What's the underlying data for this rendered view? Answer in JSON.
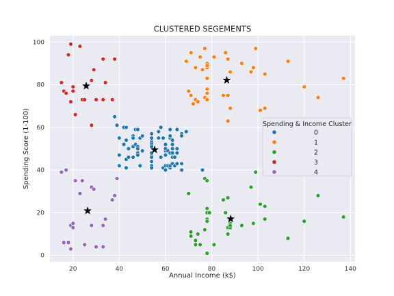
{
  "chart_data": {
    "type": "scatter",
    "title": "CLUSTERED SEGEMENTS",
    "xlabel": "Annual Income (k$)",
    "ylabel": "Spending Score (1-100)",
    "xlim": [
      10,
      142
    ],
    "ylim": [
      -3,
      103
    ],
    "xticks": [
      20,
      40,
      60,
      80,
      100,
      120,
      140
    ],
    "yticks": [
      0,
      20,
      40,
      60,
      80,
      100
    ],
    "grid": true,
    "legend": {
      "title": "Spending & Income Cluster",
      "placement": "right"
    },
    "series": [
      {
        "name": "0",
        "color": "#1f77b4",
        "points": [
          [
            38,
            65
          ],
          [
            39,
            61
          ],
          [
            40,
            55
          ],
          [
            40,
            47
          ],
          [
            40,
            42
          ],
          [
            40,
            42
          ],
          [
            42,
            52
          ],
          [
            42,
            60
          ],
          [
            43,
            54
          ],
          [
            43,
            60
          ],
          [
            43,
            45
          ],
          [
            43,
            41
          ],
          [
            44,
            50
          ],
          [
            44,
            46
          ],
          [
            46,
            51
          ],
          [
            46,
            46
          ],
          [
            46,
            56
          ],
          [
            46,
            55
          ],
          [
            47,
            52
          ],
          [
            47,
            59
          ],
          [
            48,
            51
          ],
          [
            48,
            59
          ],
          [
            48,
            50
          ],
          [
            48,
            48
          ],
          [
            48,
            59
          ],
          [
            48,
            47
          ],
          [
            49,
            55
          ],
          [
            49,
            42
          ],
          [
            50,
            49
          ],
          [
            50,
            56
          ],
          [
            54,
            47
          ],
          [
            54,
            54
          ],
          [
            54,
            53
          ],
          [
            54,
            48
          ],
          [
            54,
            52
          ],
          [
            54,
            42
          ],
          [
            54,
            51
          ],
          [
            54,
            55
          ],
          [
            54,
            41
          ],
          [
            54,
            44
          ],
          [
            54,
            57
          ],
          [
            54,
            46
          ],
          [
            57,
            58
          ],
          [
            57,
            55
          ],
          [
            58,
            60
          ],
          [
            58,
            46
          ],
          [
            59,
            55
          ],
          [
            59,
            41
          ],
          [
            60,
            49
          ],
          [
            60,
            40
          ],
          [
            60,
            42
          ],
          [
            60,
            52
          ],
          [
            60,
            47
          ],
          [
            60,
            50
          ],
          [
            61,
            42
          ],
          [
            61,
            49
          ],
          [
            62,
            41
          ],
          [
            62,
            48
          ],
          [
            62,
            59
          ],
          [
            62,
            55
          ],
          [
            62,
            56
          ],
          [
            62,
            42
          ],
          [
            63,
            50
          ],
          [
            63,
            46
          ],
          [
            63,
            43
          ],
          [
            63,
            48
          ],
          [
            63,
            52
          ],
          [
            63,
            54
          ],
          [
            64,
            42
          ],
          [
            64,
            46
          ],
          [
            65,
            48
          ],
          [
            65,
            50
          ],
          [
            65,
            43
          ],
          [
            65,
            59
          ],
          [
            67,
            43
          ],
          [
            67,
            57
          ],
          [
            67,
            56
          ],
          [
            67,
            40
          ],
          [
            69,
            58
          ],
          [
            76,
            40
          ]
        ]
      },
      {
        "name": "1",
        "color": "#ff7f0e",
        "points": [
          [
            69,
            91
          ],
          [
            70,
            77
          ],
          [
            71,
            95
          ],
          [
            71,
            75
          ],
          [
            72,
            71
          ],
          [
            73,
            88
          ],
          [
            73,
            73
          ],
          [
            74,
            72
          ],
          [
            75,
            93
          ],
          [
            76,
            87
          ],
          [
            77,
            97
          ],
          [
            77,
            74
          ],
          [
            78,
            90
          ],
          [
            78,
            88
          ],
          [
            78,
            76
          ],
          [
            78,
            89
          ],
          [
            78,
            78
          ],
          [
            78,
            73
          ],
          [
            78,
            83
          ],
          [
            78,
            78
          ],
          [
            81,
            93
          ],
          [
            85,
            75
          ],
          [
            86,
            95
          ],
          [
            87,
            63
          ],
          [
            87,
            75
          ],
          [
            87,
            92
          ],
          [
            88,
            86
          ],
          [
            88,
            69
          ],
          [
            93,
            90
          ],
          [
            97,
            86
          ],
          [
            98,
            88
          ],
          [
            99,
            97
          ],
          [
            101,
            68
          ],
          [
            103,
            85
          ],
          [
            103,
            69
          ],
          [
            113,
            91
          ],
          [
            120,
            79
          ],
          [
            126,
            74
          ],
          [
            137,
            83
          ]
        ]
      },
      {
        "name": "2",
        "color": "#2ca02c",
        "points": [
          [
            70,
            29
          ],
          [
            71,
            11
          ],
          [
            71,
            9
          ],
          [
            73,
            5
          ],
          [
            73,
            7
          ],
          [
            74,
            10
          ],
          [
            75,
            5
          ],
          [
            77,
            12
          ],
          [
            77,
            36
          ],
          [
            78,
            22
          ],
          [
            78,
            17
          ],
          [
            78,
            20
          ],
          [
            78,
            16
          ],
          [
            78,
            1
          ],
          [
            78,
            1
          ],
          [
            78,
            35
          ],
          [
            79,
            20
          ],
          [
            81,
            5
          ],
          [
            85,
            26
          ],
          [
            86,
            20
          ],
          [
            87,
            27
          ],
          [
            87,
            13
          ],
          [
            87,
            10
          ],
          [
            88,
            13
          ],
          [
            88,
            15
          ],
          [
            88,
            14
          ],
          [
            93,
            14
          ],
          [
            97,
            32
          ],
          [
            98,
            15
          ],
          [
            99,
            39
          ],
          [
            101,
            24
          ],
          [
            103,
            17
          ],
          [
            103,
            23
          ],
          [
            113,
            8
          ],
          [
            120,
            16
          ],
          [
            126,
            28
          ],
          [
            137,
            18
          ]
        ]
      },
      {
        "name": "3",
        "color": "#d62728",
        "points": [
          [
            15,
            81
          ],
          [
            16,
            77
          ],
          [
            17,
            76
          ],
          [
            18,
            94
          ],
          [
            19,
            72
          ],
          [
            19,
            99
          ],
          [
            20,
            77
          ],
          [
            20,
            79
          ],
          [
            21,
            66
          ],
          [
            23,
            98
          ],
          [
            24,
            73
          ],
          [
            25,
            73
          ],
          [
            28,
            82
          ],
          [
            28,
            61
          ],
          [
            29,
            87
          ],
          [
            30,
            73
          ],
          [
            33,
            73
          ],
          [
            33,
            92
          ],
          [
            34,
            81
          ],
          [
            37,
            73
          ],
          [
            38,
            92
          ]
        ]
      },
      {
        "name": "4",
        "color": "#9467bd",
        "points": [
          [
            15,
            39
          ],
          [
            16,
            6
          ],
          [
            17,
            40
          ],
          [
            18,
            6
          ],
          [
            19,
            3
          ],
          [
            19,
            14
          ],
          [
            20,
            15
          ],
          [
            20,
            13
          ],
          [
            21,
            35
          ],
          [
            23,
            29
          ],
          [
            24,
            35
          ],
          [
            25,
            5
          ],
          [
            28,
            14
          ],
          [
            28,
            32
          ],
          [
            29,
            31
          ],
          [
            30,
            4
          ],
          [
            33,
            4
          ],
          [
            33,
            14
          ],
          [
            34,
            17
          ],
          [
            37,
            26
          ],
          [
            38,
            28
          ],
          [
            39,
            36
          ]
        ]
      }
    ],
    "centroids": [
      {
        "series": "0",
        "x": 55.3,
        "y": 49.5
      },
      {
        "series": "1",
        "x": 86.5,
        "y": 82.1
      },
      {
        "series": "2",
        "x": 88.2,
        "y": 17.1
      },
      {
        "series": "3",
        "x": 25.7,
        "y": 79.4
      },
      {
        "series": "4",
        "x": 26.3,
        "y": 20.9
      }
    ]
  }
}
